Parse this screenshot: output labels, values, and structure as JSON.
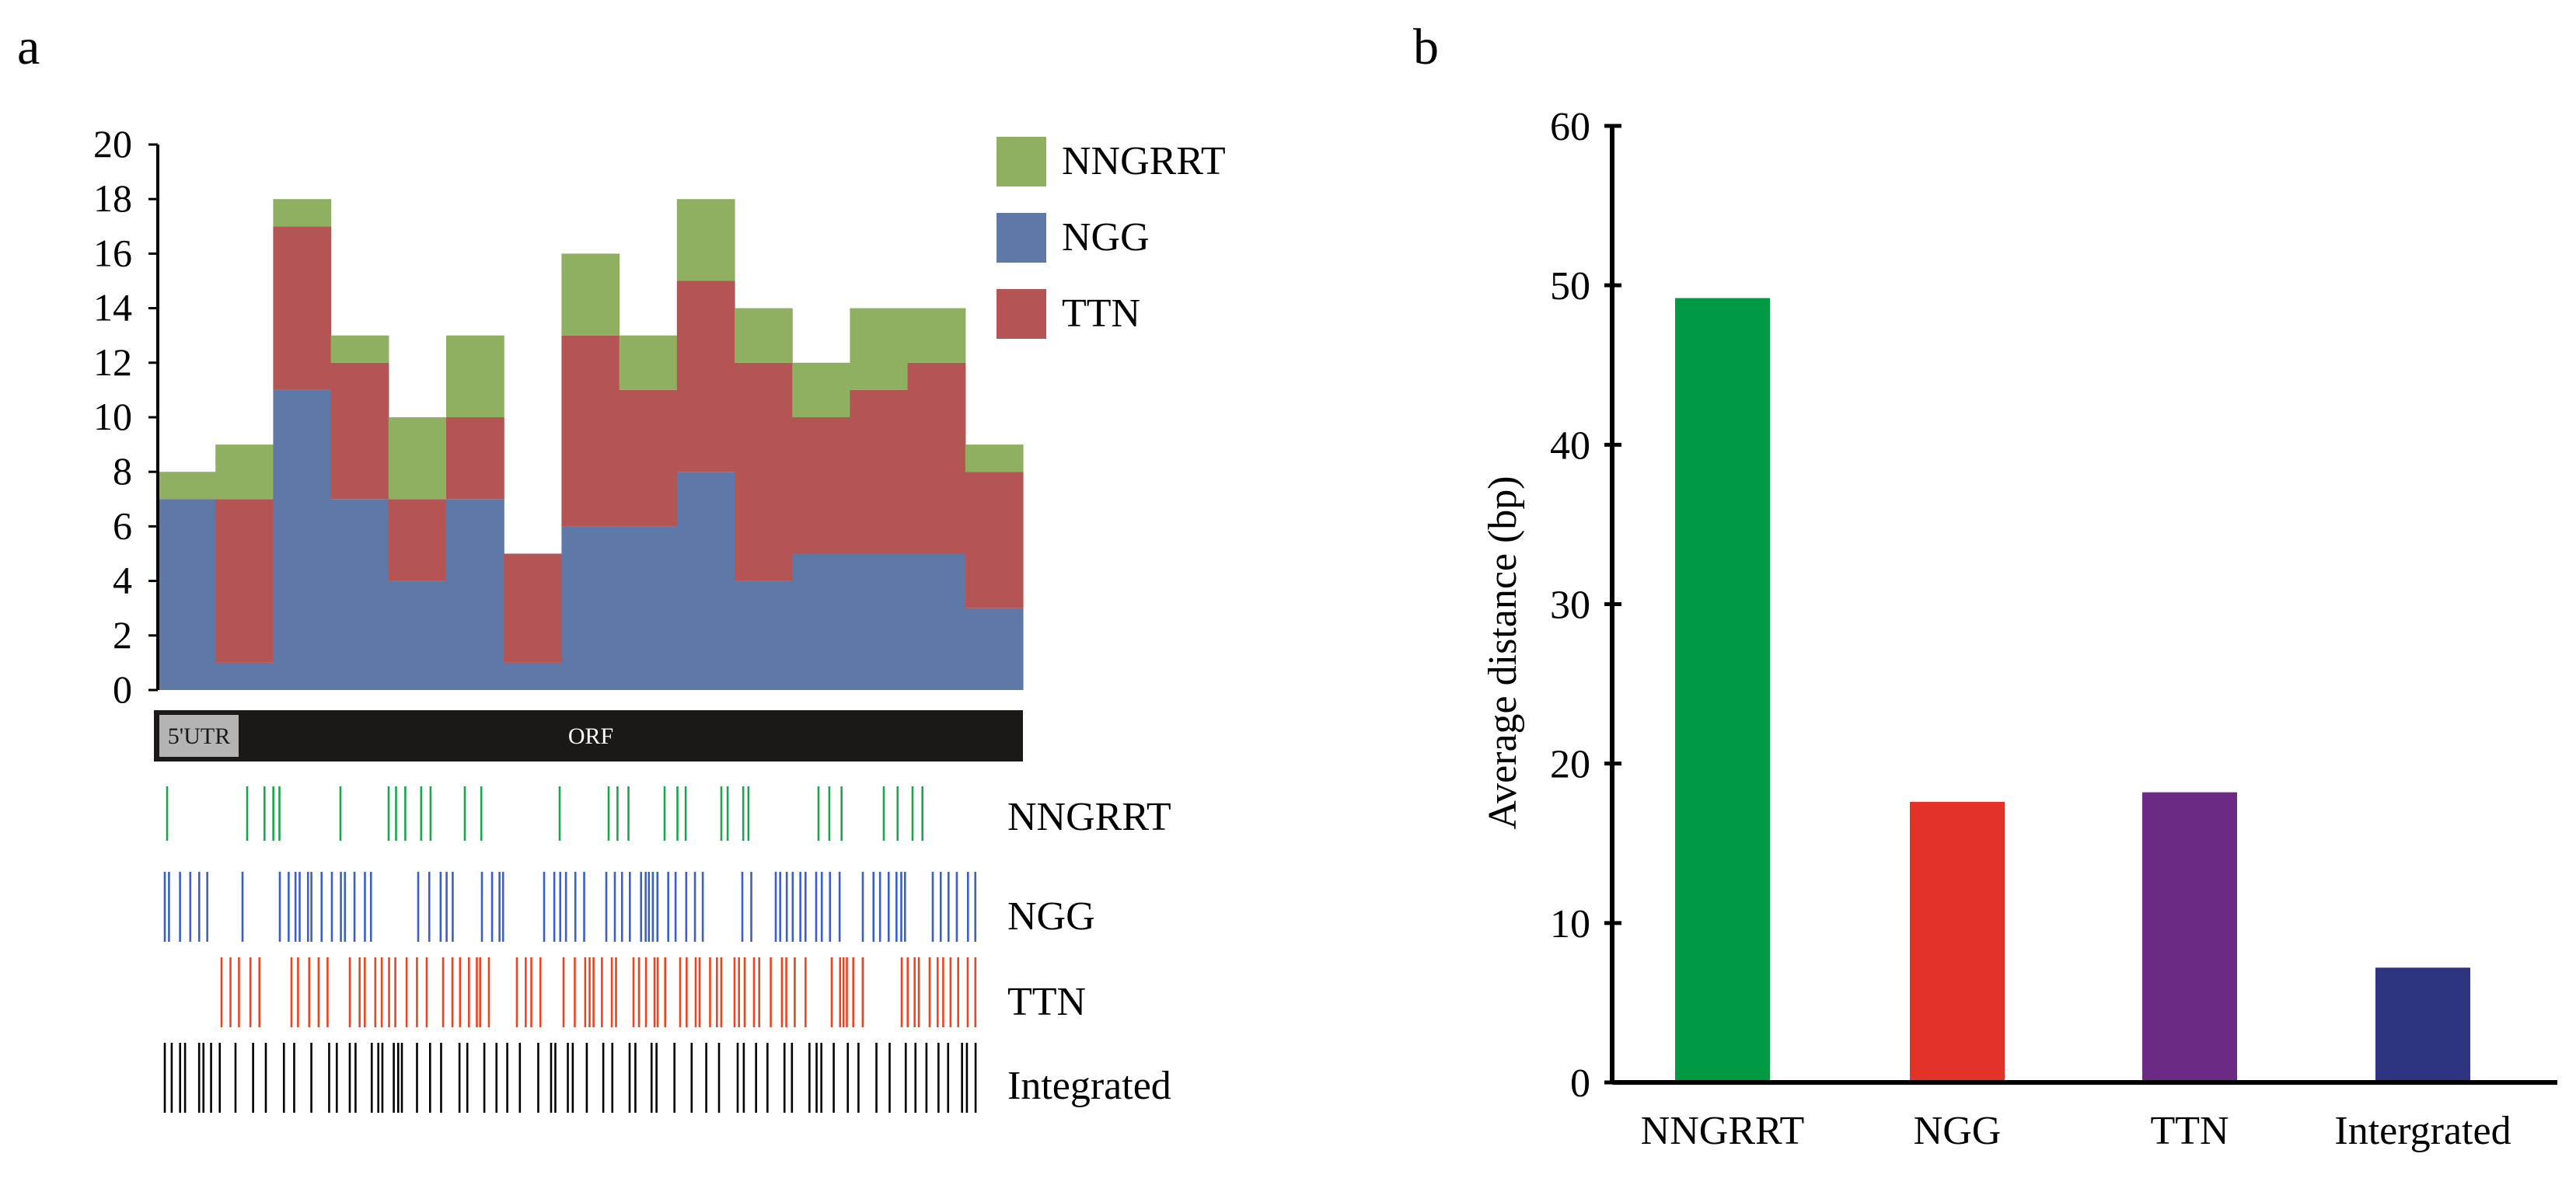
{
  "panels": {
    "a_label": "a",
    "b_label": "b"
  },
  "colors": {
    "nngrrt": "#8fb060",
    "ngg": "#5e78a8",
    "ttn": "#b45454",
    "track_nngrrt": "#1aa64a",
    "track_ngg": "#3a5fcd",
    "track_ttn": "#ee4422",
    "track_integrated": "#000000",
    "bar_nngrrt": "#009a44",
    "bar_ngg": "#e53228",
    "bar_ttn": "#6b2a84",
    "bar_integrated": "#2f3480",
    "gene_bar": "#1c1818",
    "utr_box": "#b4b4b4"
  },
  "gene": {
    "utr_label": "5'UTR",
    "orf_label": "ORF"
  },
  "tracks": [
    {
      "key": "nngrrt",
      "label": "NNGRRT"
    },
    {
      "key": "ngg",
      "label": "NGG"
    },
    {
      "key": "ttn",
      "label": "TTN"
    },
    {
      "key": "integrated",
      "label": "Integrated"
    }
  ],
  "chart_data": [
    {
      "type": "bar",
      "stacked": true,
      "title": "",
      "xlabel": "",
      "ylabel": "",
      "ylim": [
        0,
        20
      ],
      "yticks": [
        0,
        2,
        4,
        6,
        8,
        10,
        12,
        14,
        16,
        18,
        20
      ],
      "legend": "top-right",
      "bins": 15,
      "series": [
        {
          "name": "NGG",
          "values": [
            7,
            1,
            11,
            7,
            4,
            7,
            1,
            6,
            6,
            8,
            4,
            5,
            5,
            5,
            3
          ]
        },
        {
          "name": "TTN",
          "values": [
            0,
            6,
            6,
            5,
            3,
            3,
            4,
            7,
            5,
            7,
            8,
            5,
            6,
            7,
            5
          ]
        },
        {
          "name": "NNGRRT",
          "values": [
            1,
            2,
            1,
            1,
            3,
            3,
            0,
            3,
            2,
            3,
            2,
            2,
            3,
            2,
            1
          ]
        }
      ]
    },
    {
      "type": "bar",
      "title": "",
      "xlabel": "",
      "ylabel": "Average distance (bp)",
      "ylim": [
        0,
        60
      ],
      "yticks": [
        0,
        10,
        20,
        30,
        40,
        50,
        60
      ],
      "categories": [
        "NNGRRT",
        "NGG",
        "TTN",
        "Intergrated"
      ],
      "values": [
        49.2,
        17.6,
        18.2,
        7.2
      ]
    }
  ]
}
